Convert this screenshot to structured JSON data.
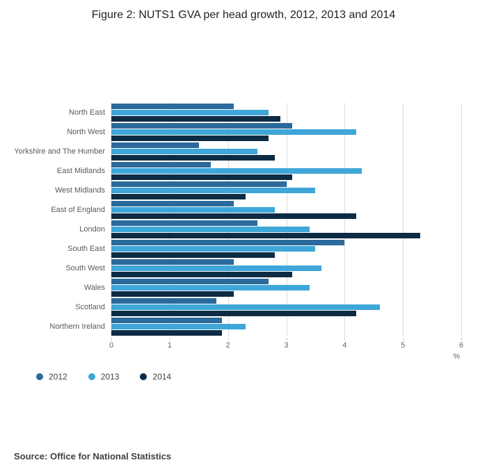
{
  "source": "Source: Office for National Statistics",
  "chart_data": {
    "type": "bar",
    "orientation": "horizontal",
    "title": "Figure 2: NUTS1 GVA per head growth, 2012, 2013 and 2014",
    "categories": [
      "North East",
      "North West",
      "Yorkshire and The Humber",
      "East Midlands",
      "West Midlands",
      "East of England",
      "London",
      "South East",
      "South West",
      "Wales",
      "Scotland",
      "Northern Ireland"
    ],
    "series": [
      {
        "name": "2012",
        "color": "#2b6a9b",
        "values": [
          2.1,
          3.1,
          1.5,
          1.7,
          3.0,
          2.1,
          2.5,
          4.0,
          2.1,
          2.7,
          1.8,
          1.9
        ]
      },
      {
        "name": "2013",
        "color": "#3fa6d8",
        "values": [
          2.7,
          4.2,
          2.5,
          4.3,
          3.5,
          2.8,
          3.4,
          3.5,
          3.6,
          3.4,
          4.6,
          2.3
        ]
      },
      {
        "name": "2014",
        "color": "#0e2b44",
        "values": [
          2.9,
          2.7,
          2.8,
          3.1,
          2.3,
          4.2,
          5.3,
          2.8,
          3.1,
          2.1,
          4.2,
          1.9
        ]
      }
    ],
    "xlabel": "%",
    "xlim": [
      0,
      6
    ],
    "xticks": [
      0,
      1,
      2,
      3,
      4,
      5,
      6
    ],
    "grid": true,
    "legend_position": "bottom-left",
    "gridline_color": "#dcdcdc"
  }
}
